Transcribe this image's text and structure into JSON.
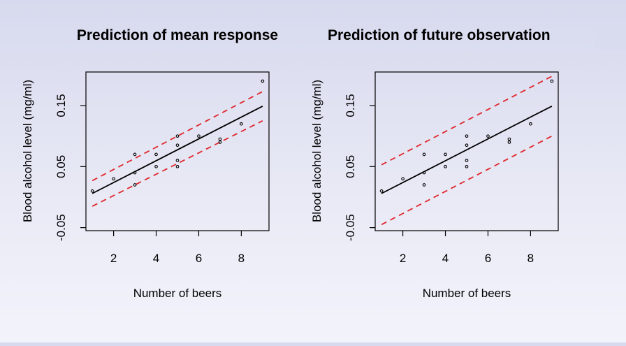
{
  "colors": {
    "fit_line": "#000000",
    "band_line": "#e0262b",
    "points": "#000000",
    "background_top": "#d7d9ee",
    "background_bottom": "#f3f3fb"
  },
  "chart_data": [
    {
      "type": "scatter",
      "title": "Prediction of mean response",
      "xlabel": "Number of beers",
      "ylabel": "Blood alcohol level (mg/ml)",
      "xlim": [
        0.7,
        9.3
      ],
      "ylim": [
        -0.055,
        0.205
      ],
      "x_ticks": [
        2,
        4,
        6,
        8
      ],
      "x_tick_labels": [
        "2",
        "4",
        "6",
        "8"
      ],
      "y_ticks": [
        -0.05,
        0.05,
        0.15
      ],
      "y_tick_labels": [
        "-0.05",
        "0.05",
        "0.15"
      ],
      "grid": false,
      "points": {
        "x": [
          1,
          2,
          3,
          3,
          3,
          4,
          4,
          5,
          5,
          5,
          5,
          6,
          7,
          7,
          8,
          9
        ],
        "y": [
          0.01,
          0.03,
          0.02,
          0.04,
          0.07,
          0.05,
          0.07,
          0.05,
          0.06,
          0.085,
          0.1,
          0.1,
          0.09,
          0.095,
          0.12,
          0.19
        ]
      },
      "fit_line": {
        "x": [
          1,
          9
        ],
        "y": [
          0.006,
          0.149
        ]
      },
      "band_upper": {
        "x": [
          1,
          9
        ],
        "y": [
          0.027,
          0.173
        ]
      },
      "band_lower": {
        "x": [
          1,
          9
        ],
        "y": [
          -0.015,
          0.125
        ]
      }
    },
    {
      "type": "scatter",
      "title": "Prediction of future observation",
      "xlabel": "Number of beers",
      "ylabel": "Blood alcohol level (mg/ml)",
      "xlim": [
        0.7,
        9.3
      ],
      "ylim": [
        -0.055,
        0.205
      ],
      "x_ticks": [
        2,
        4,
        6,
        8
      ],
      "x_tick_labels": [
        "2",
        "4",
        "6",
        "8"
      ],
      "y_ticks": [
        -0.05,
        0.05,
        0.15
      ],
      "y_tick_labels": [
        "-0.05",
        "0.05",
        "0.15"
      ],
      "grid": false,
      "points": {
        "x": [
          1,
          2,
          3,
          3,
          3,
          4,
          4,
          5,
          5,
          5,
          5,
          6,
          7,
          7,
          8,
          9
        ],
        "y": [
          0.01,
          0.03,
          0.02,
          0.04,
          0.07,
          0.05,
          0.07,
          0.05,
          0.06,
          0.085,
          0.1,
          0.1,
          0.09,
          0.095,
          0.12,
          0.19
        ]
      },
      "fit_line": {
        "x": [
          1,
          9
        ],
        "y": [
          0.006,
          0.149
        ]
      },
      "band_upper": {
        "x": [
          1,
          9
        ],
        "y": [
          0.053,
          0.198
        ]
      },
      "band_lower": {
        "x": [
          1,
          9
        ],
        "y": [
          -0.045,
          0.1
        ]
      }
    }
  ]
}
